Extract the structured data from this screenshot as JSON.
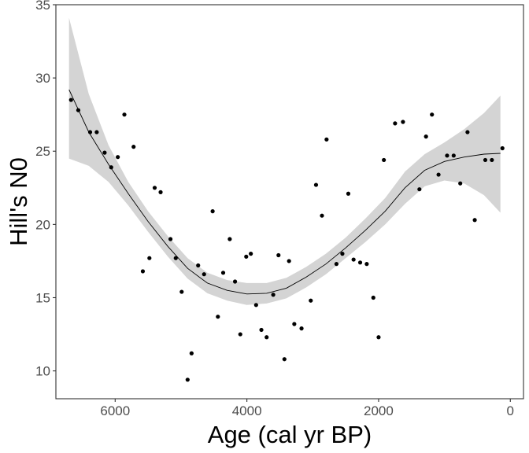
{
  "chart_data": {
    "type": "scatter",
    "xlabel": "Age (cal yr BP)",
    "ylabel": "Hill's N0",
    "xlim": [
      6900,
      -200
    ],
    "ylim": [
      8.1,
      35
    ],
    "x_reversed": true,
    "x_ticks": [
      6000,
      4000,
      2000,
      0
    ],
    "y_ticks": [
      10,
      15,
      20,
      25,
      30,
      35
    ],
    "grid": false,
    "legend": "none",
    "colors": {
      "points": "#000000",
      "smooth_line": "#000000",
      "confidence_band": "#d4d4d4",
      "axis": "#333333",
      "tick_label": "#4d4d4d"
    },
    "points": [
      {
        "x": 6670,
        "y": 28.5
      },
      {
        "x": 6560,
        "y": 27.8
      },
      {
        "x": 6380,
        "y": 26.3
      },
      {
        "x": 6280,
        "y": 26.3
      },
      {
        "x": 6160,
        "y": 24.9
      },
      {
        "x": 6060,
        "y": 23.9
      },
      {
        "x": 5960,
        "y": 24.6
      },
      {
        "x": 5860,
        "y": 27.5
      },
      {
        "x": 5720,
        "y": 25.3
      },
      {
        "x": 5580,
        "y": 16.8
      },
      {
        "x": 5480,
        "y": 17.7
      },
      {
        "x": 5400,
        "y": 22.5
      },
      {
        "x": 5310,
        "y": 22.2
      },
      {
        "x": 5160,
        "y": 19.0
      },
      {
        "x": 5080,
        "y": 17.7
      },
      {
        "x": 4990,
        "y": 15.4
      },
      {
        "x": 4900,
        "y": 9.4
      },
      {
        "x": 4840,
        "y": 11.2
      },
      {
        "x": 4740,
        "y": 17.2
      },
      {
        "x": 4650,
        "y": 16.6
      },
      {
        "x": 4520,
        "y": 20.9
      },
      {
        "x": 4440,
        "y": 13.7
      },
      {
        "x": 4360,
        "y": 16.7
      },
      {
        "x": 4260,
        "y": 19.0
      },
      {
        "x": 4180,
        "y": 16.1
      },
      {
        "x": 4100,
        "y": 12.5
      },
      {
        "x": 4010,
        "y": 17.8
      },
      {
        "x": 3940,
        "y": 18.0
      },
      {
        "x": 3860,
        "y": 14.5
      },
      {
        "x": 3780,
        "y": 12.8
      },
      {
        "x": 3700,
        "y": 12.3
      },
      {
        "x": 3600,
        "y": 15.2
      },
      {
        "x": 3520,
        "y": 17.9
      },
      {
        "x": 3430,
        "y": 10.8
      },
      {
        "x": 3360,
        "y": 17.5
      },
      {
        "x": 3280,
        "y": 13.2
      },
      {
        "x": 3170,
        "y": 12.9
      },
      {
        "x": 3030,
        "y": 14.8
      },
      {
        "x": 2950,
        "y": 22.7
      },
      {
        "x": 2860,
        "y": 20.6
      },
      {
        "x": 2790,
        "y": 25.8
      },
      {
        "x": 2640,
        "y": 17.3
      },
      {
        "x": 2550,
        "y": 18.0
      },
      {
        "x": 2460,
        "y": 22.1
      },
      {
        "x": 2380,
        "y": 17.6
      },
      {
        "x": 2280,
        "y": 17.4
      },
      {
        "x": 2180,
        "y": 17.3
      },
      {
        "x": 2080,
        "y": 15.0
      },
      {
        "x": 2000,
        "y": 12.3
      },
      {
        "x": 1920,
        "y": 24.4
      },
      {
        "x": 1750,
        "y": 26.9
      },
      {
        "x": 1630,
        "y": 27.0
      },
      {
        "x": 1380,
        "y": 22.4
      },
      {
        "x": 1280,
        "y": 26.0
      },
      {
        "x": 1190,
        "y": 27.5
      },
      {
        "x": 1090,
        "y": 23.4
      },
      {
        "x": 960,
        "y": 24.7
      },
      {
        "x": 860,
        "y": 24.7
      },
      {
        "x": 760,
        "y": 22.8
      },
      {
        "x": 650,
        "y": 26.3
      },
      {
        "x": 540,
        "y": 20.3
      },
      {
        "x": 380,
        "y": 24.4
      },
      {
        "x": 280,
        "y": 24.4
      },
      {
        "x": 120,
        "y": 25.2
      }
    ],
    "smooth": {
      "x": [
        6700,
        6400,
        6100,
        5800,
        5500,
        5200,
        4900,
        4600,
        4300,
        4000,
        3700,
        3400,
        3100,
        2800,
        2500,
        2200,
        1900,
        1600,
        1300,
        1000,
        700,
        400,
        150
      ],
      "y": [
        29.2,
        26.3,
        24.1,
        22.1,
        20.2,
        18.5,
        17.0,
        16.0,
        15.5,
        15.25,
        15.3,
        15.65,
        16.4,
        17.3,
        18.4,
        19.6,
        20.9,
        22.5,
        23.7,
        24.3,
        24.6,
        24.8,
        24.85
      ],
      "lower": [
        24.5,
        24.0,
        22.9,
        21.3,
        19.5,
        17.8,
        16.3,
        15.3,
        14.8,
        14.5,
        14.6,
        14.95,
        15.7,
        16.6,
        17.7,
        18.8,
        20.0,
        21.4,
        22.6,
        23.0,
        22.8,
        22.0,
        20.8
      ],
      "upper": [
        34.1,
        28.9,
        25.4,
        22.9,
        20.9,
        19.2,
        17.7,
        16.7,
        16.2,
        16.0,
        16.0,
        16.35,
        17.1,
        18.0,
        19.1,
        20.4,
        21.8,
        23.6,
        24.8,
        25.6,
        26.5,
        27.6,
        28.8
      ]
    }
  }
}
